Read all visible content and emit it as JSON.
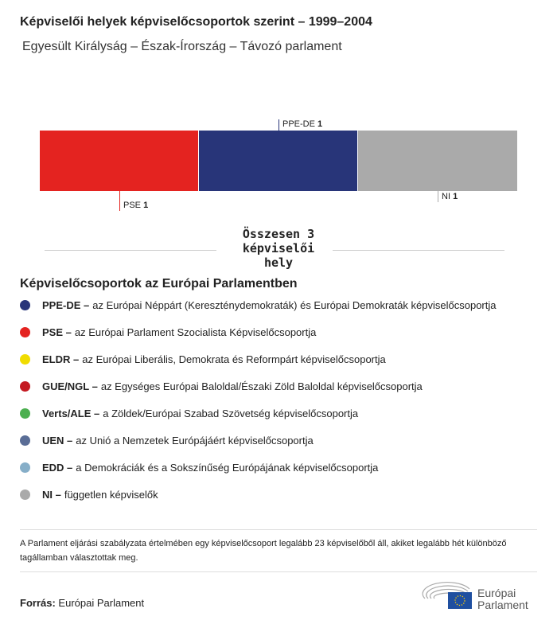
{
  "title": "Képviselői helyek képviselőcsoportok szerint – 1999–2004",
  "subtitle": "Egyesült Királyság – Észak-Írország – Távozó parlament",
  "chart_data": {
    "type": "bar",
    "orientation": "stacked-horizontal",
    "categories": [
      "PSE",
      "PPE-DE",
      "NI"
    ],
    "values": [
      1,
      1,
      1
    ],
    "colors": [
      "#e42320",
      "#283579",
      "#aaaaaa"
    ],
    "xlim": [
      0,
      3
    ]
  },
  "labels": {
    "pse": "PSE",
    "pse_v": "1",
    "ppe": "PPE-DE",
    "ppe_v": "1",
    "ni": "NI",
    "ni_v": "1"
  },
  "total": "Összesen 3 képviselői hely",
  "legend_title": "Képviselőcsoportok az Európai Parlamentben",
  "legend": [
    {
      "code": "PPE-DE –",
      "desc": "az Európai Néppárt (Kereszténydemokraták) és Európai Demokraták képviselőcsoportja",
      "color": "#283579"
    },
    {
      "code": "PSE –",
      "desc": "az Európai Parlament Szocialista Képviselőcsoportja",
      "color": "#e42320"
    },
    {
      "code": "ELDR –",
      "desc": "az Európai Liberális, Demokrata és Reformpárt képviselőcsoportja",
      "color": "#f0dc00"
    },
    {
      "code": "GUE/NGL –",
      "desc": "az Egységes Európai Baloldal/Északi Zöld Baloldal képviselőcsoportja",
      "color": "#c41a22"
    },
    {
      "code": "Verts/ALE –",
      "desc": "a Zöldek/Európai Szabad Szövetség képviselőcsoportja",
      "color": "#4caf50"
    },
    {
      "code": "UEN –",
      "desc": "az Unió a Nemzetek Európájáért képviselőcsoportja",
      "color": "#5a6d96"
    },
    {
      "code": "EDD –",
      "desc": "a Demokráciák és a Sokszínűség Európájának képviselőcsoportja",
      "color": "#86aec8"
    },
    {
      "code": "NI –",
      "desc": "független képviselők",
      "color": "#aaaaaa"
    }
  ],
  "note": "A Parlament eljárási szabályzata értelmében egy képviselőcsoport legalább 23 képviselőből áll, akiket legalább hét különböző tagállamban választottak meg.",
  "source_label": "Forrás:",
  "source": "Európai Parlament",
  "logo_text": "Európai Parlament"
}
